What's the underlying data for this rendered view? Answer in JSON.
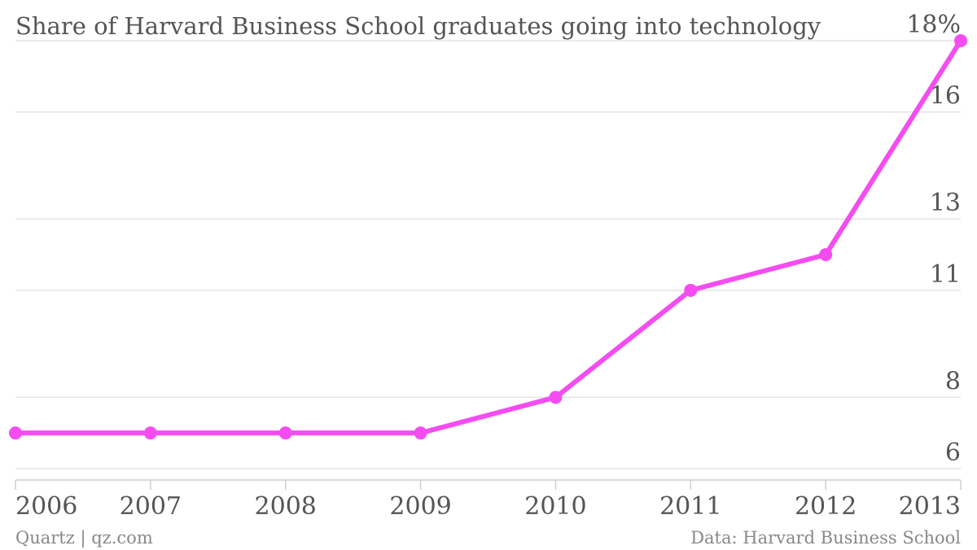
{
  "colors": {
    "series": "#f54cf2",
    "grid": "#e3e3e3",
    "text": "#555555",
    "footer": "#888888"
  },
  "footer": {
    "source_left": "Quartz | qz.com",
    "source_right": "Data: Harvard Business School"
  },
  "chart_data": {
    "type": "line",
    "title": "Share of Harvard Business School graduates going into technology",
    "xlabel": "",
    "ylabel": "",
    "x": [
      "2006",
      "2007",
      "2008",
      "2009",
      "2010",
      "2011",
      "2012",
      "2013"
    ],
    "series": [
      {
        "values": [
          7,
          7,
          7,
          7,
          8,
          11,
          12,
          18
        ]
      }
    ],
    "ylim": [
      6,
      18
    ],
    "yticks": [
      6,
      8,
      11,
      13,
      16,
      18
    ],
    "ytick_labels": [
      "6",
      "8",
      "11",
      "13",
      "16",
      "18%"
    ],
    "grid": true,
    "markers": true
  }
}
